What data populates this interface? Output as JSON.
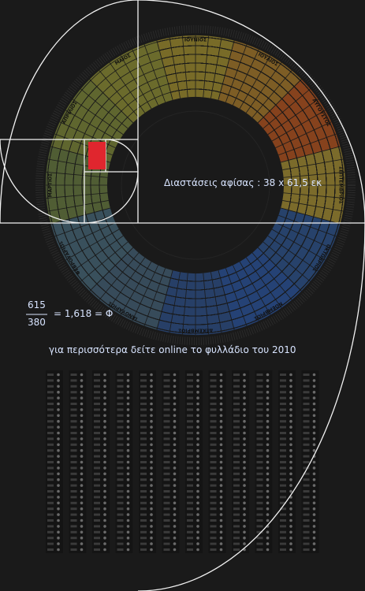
{
  "poster": {
    "dimensions": "Διαστάσεις αφίσας : 38 x 61,5 εκ",
    "ratio": {
      "numerator": "615",
      "denominator": "380",
      "result": "= 1,618 = Φ"
    },
    "note": "για περισσότερα δείτε  online το φυλλάδιο του 2010",
    "months": [
      "ΙΟΥΝΙΟΣ",
      "ΙΟΥΛΙΟΣ",
      "ΑΥΓΟΥΣΤΟΣ",
      "ΣΕΠΤΕΜΒΡΙΟΣ",
      "ΟΚΤΩΒΡΙΟΣ",
      "ΝΟΕΜΒΡΙΟΣ",
      "ΔΕΚΕΜΒΡΙΟΣ",
      "ΙΑΝΟΥΑΡΙΟΣ",
      "ΦΕΒΡΟΥΑΡΙΟΣ",
      "ΜΑΡΤΙΟΣ",
      "ΑΠΡΙΛΙΟΣ",
      "ΜΑΙΟΣ"
    ]
  }
}
